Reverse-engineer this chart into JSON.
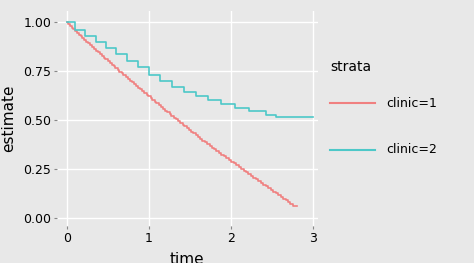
{
  "title": "",
  "xlabel": "time",
  "ylabel": "estimate",
  "legend_title": "strata",
  "legend_entries": [
    "clinic=1",
    "clinic=2"
  ],
  "colors": [
    "#F08080",
    "#4DC8C8"
  ],
  "bg_color": "#E8E8E8",
  "panel_bg": "#E8E8E8",
  "grid_color": "#FFFFFF",
  "xlim": [
    -0.12,
    3.05
  ],
  "ylim": [
    -0.04,
    1.06
  ],
  "xticks": [
    0,
    1,
    2,
    3
  ],
  "yticks": [
    0.0,
    0.25,
    0.5,
    0.75,
    1.0
  ],
  "clinic1_t": [
    0.0,
    0.02,
    0.04,
    0.06,
    0.08,
    0.1,
    0.12,
    0.15,
    0.17,
    0.19,
    0.21,
    0.24,
    0.26,
    0.28,
    0.31,
    0.33,
    0.36,
    0.38,
    0.4,
    0.43,
    0.45,
    0.47,
    0.5,
    0.52,
    0.55,
    0.57,
    0.59,
    0.62,
    0.64,
    0.67,
    0.69,
    0.72,
    0.74,
    0.77,
    0.79,
    0.82,
    0.84,
    0.87,
    0.89,
    0.92,
    0.94,
    0.97,
    0.99,
    1.02,
    1.04,
    1.07,
    1.09,
    1.12,
    1.15,
    1.17,
    1.2,
    1.22,
    1.25,
    1.27,
    1.3,
    1.33,
    1.35,
    1.38,
    1.41,
    1.43,
    1.46,
    1.49,
    1.51,
    1.54,
    1.57,
    1.6,
    1.62,
    1.65,
    1.68,
    1.71,
    1.74,
    1.77,
    1.79,
    1.82,
    1.85,
    1.88,
    1.91,
    1.94,
    1.97,
    2.0,
    2.03,
    2.06,
    2.09,
    2.12,
    2.15,
    2.18,
    2.21,
    2.24,
    2.27,
    2.3,
    2.33,
    2.36,
    2.39,
    2.42,
    2.45,
    2.48,
    2.51,
    2.54,
    2.57,
    2.6,
    2.63,
    2.66,
    2.69,
    2.72,
    2.75
  ],
  "clinic1_s": [
    1.0,
    0.991,
    0.982,
    0.973,
    0.964,
    0.955,
    0.946,
    0.937,
    0.928,
    0.919,
    0.91,
    0.901,
    0.892,
    0.883,
    0.874,
    0.865,
    0.856,
    0.847,
    0.838,
    0.829,
    0.82,
    0.811,
    0.802,
    0.793,
    0.784,
    0.775,
    0.766,
    0.757,
    0.748,
    0.739,
    0.73,
    0.721,
    0.712,
    0.703,
    0.694,
    0.685,
    0.676,
    0.667,
    0.658,
    0.649,
    0.64,
    0.631,
    0.622,
    0.613,
    0.604,
    0.595,
    0.586,
    0.577,
    0.568,
    0.559,
    0.55,
    0.541,
    0.532,
    0.523,
    0.514,
    0.505,
    0.496,
    0.487,
    0.478,
    0.469,
    0.46,
    0.451,
    0.442,
    0.433,
    0.424,
    0.415,
    0.406,
    0.397,
    0.388,
    0.379,
    0.37,
    0.361,
    0.352,
    0.343,
    0.334,
    0.325,
    0.316,
    0.307,
    0.298,
    0.289,
    0.28,
    0.271,
    0.262,
    0.253,
    0.244,
    0.235,
    0.226,
    0.217,
    0.208,
    0.199,
    0.19,
    0.181,
    0.172,
    0.163,
    0.154,
    0.145,
    0.136,
    0.127,
    0.118,
    0.109,
    0.1,
    0.091,
    0.082,
    0.073,
    0.064
  ],
  "clinic2_t": [
    0.0,
    0.1,
    0.22,
    0.35,
    0.48,
    0.6,
    0.73,
    0.87,
    1.0,
    1.13,
    1.28,
    1.42,
    1.57,
    1.72,
    1.88,
    2.05,
    2.22,
    2.42,
    2.55
  ],
  "clinic2_s": [
    1.0,
    0.96,
    0.93,
    0.9,
    0.87,
    0.84,
    0.8,
    0.77,
    0.73,
    0.7,
    0.67,
    0.645,
    0.625,
    0.605,
    0.585,
    0.565,
    0.545,
    0.525,
    0.515
  ]
}
